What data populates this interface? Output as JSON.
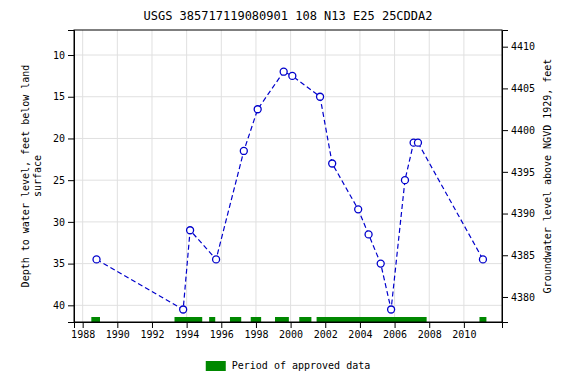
{
  "chart_data": {
    "type": "line",
    "title": "USGS 385717119080901 108  N13 E25 25CDDA2",
    "y_label": "Depth to water level, feet below land\nsurface",
    "y2_label": "Groundwater level above NGVD 1929, feet",
    "xlim": [
      1987.5,
      2012.2
    ],
    "xticks": [
      1988,
      1990,
      1992,
      1994,
      1996,
      1998,
      2000,
      2002,
      2004,
      2006,
      2008,
      2010
    ],
    "ylim": [
      42,
      7
    ],
    "yticks": [
      10,
      15,
      20,
      25,
      30,
      35,
      40
    ],
    "y2lim": [
      4377,
      4412
    ],
    "y2ticks": [
      4380,
      4385,
      4390,
      4395,
      4400,
      4405,
      4410
    ],
    "grid": true,
    "legend": "bottom",
    "series": [
      {
        "type": "line",
        "color": "#0000cc",
        "line_style": "dashed",
        "marker": "circle",
        "x": [
          1988.8,
          1993.8,
          1994.2,
          1995.7,
          1997.3,
          1998.1,
          1999.6,
          2000.1,
          2001.7,
          2002.4,
          2003.9,
          2004.5,
          2005.2,
          2005.8,
          2006.6,
          2007.1,
          2007.35,
          2011.1
        ],
        "values": [
          34.5,
          40.5,
          31.0,
          34.5,
          21.5,
          16.5,
          12.0,
          12.5,
          15.0,
          23.0,
          28.5,
          31.5,
          35.0,
          40.5,
          25.0,
          20.5,
          20.5,
          34.5
        ]
      },
      {
        "name": "Period of approved data",
        "type": "bar",
        "orientation": "horizontal",
        "color": "#008800",
        "intervals": [
          [
            1988.5,
            1989.0
          ],
          [
            1993.3,
            1994.9
          ],
          [
            1995.3,
            1995.65
          ],
          [
            1996.5,
            1997.15
          ],
          [
            1997.7,
            1998.3
          ],
          [
            1999.1,
            1999.9
          ],
          [
            2000.5,
            2001.2
          ],
          [
            2001.5,
            2007.85
          ],
          [
            2010.9,
            2011.3
          ]
        ],
        "y": 41.7,
        "height": 0.6
      }
    ]
  }
}
